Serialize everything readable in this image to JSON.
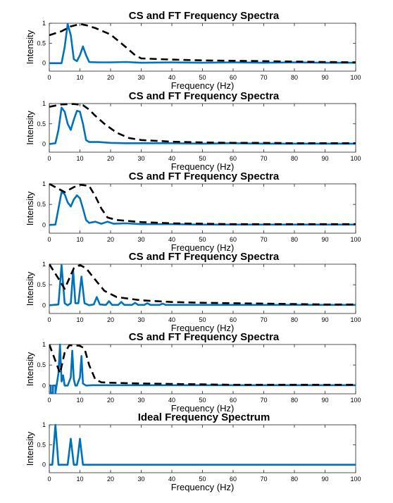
{
  "colors": {
    "cs": "#0072bd",
    "ft": "#000000"
  },
  "chart_data": [
    {
      "type": "line",
      "title": "CS and FT Frequency Spectra",
      "xlabel": "Frequency (Hz)",
      "ylabel": "Intensity",
      "xlim": [
        0,
        100
      ],
      "ylim": [
        -0.2,
        1
      ],
      "xticks": [
        0,
        10,
        20,
        30,
        40,
        50,
        60,
        70,
        80,
        90,
        100
      ],
      "yticks": [
        0,
        0.5,
        1
      ],
      "series": [
        {
          "style": "solid",
          "color": "#0072bd",
          "x": [
            0,
            4,
            5,
            6,
            7,
            8,
            9,
            10,
            11,
            12,
            13,
            16,
            20,
            25,
            30,
            40,
            50,
            60,
            70,
            80,
            90,
            100
          ],
          "y": [
            0,
            0,
            0.4,
            0.98,
            0.7,
            0.1,
            0.05,
            0.2,
            0.42,
            0.2,
            0.03,
            0.02,
            0.02,
            0.03,
            0.01,
            0.02,
            0.01,
            0.02,
            0.01,
            0.02,
            0.01,
            0.01
          ]
        },
        {
          "style": "dashed",
          "color": "#000000",
          "x": [
            0,
            4,
            7,
            10,
            12,
            15,
            20,
            25,
            28,
            30,
            40,
            50,
            60,
            70,
            80,
            90,
            100
          ],
          "y": [
            0.7,
            0.8,
            0.92,
            0.98,
            0.95,
            0.88,
            0.72,
            0.4,
            0.2,
            0.12,
            0.09,
            0.07,
            0.06,
            0.05,
            0.04,
            0.03,
            0.02
          ]
        }
      ]
    },
    {
      "type": "line",
      "title": "CS and FT Frequency Spectra",
      "xlabel": "Frequency (Hz)",
      "ylabel": "Intensity",
      "xlim": [
        0,
        100
      ],
      "ylim": [
        -0.2,
        1
      ],
      "xticks": [
        0,
        10,
        20,
        30,
        40,
        50,
        60,
        70,
        80,
        90,
        100
      ],
      "yticks": [
        0,
        0.5,
        1
      ],
      "series": [
        {
          "style": "solid",
          "color": "#0072bd",
          "x": [
            0,
            2,
            3,
            4,
            5,
            6,
            7,
            8,
            9,
            10,
            11,
            12,
            13,
            16,
            20,
            25,
            30,
            40,
            50,
            60,
            70,
            80,
            90,
            100
          ],
          "y": [
            0,
            0.02,
            0.35,
            0.9,
            0.8,
            0.5,
            0.35,
            0.6,
            0.82,
            0.8,
            0.5,
            0.1,
            0.05,
            0.05,
            0.03,
            0.02,
            0.02,
            0.02,
            0.01,
            0.02,
            0.01,
            0.01,
            0.01,
            0.01
          ]
        },
        {
          "style": "dashed",
          "color": "#000000",
          "x": [
            0,
            4,
            8,
            11,
            13,
            15,
            18,
            22,
            26,
            30,
            40,
            50,
            60,
            70,
            80,
            90,
            100
          ],
          "y": [
            0.92,
            0.98,
            0.99,
            0.96,
            0.85,
            0.7,
            0.5,
            0.28,
            0.15,
            0.1,
            0.06,
            0.04,
            0.03,
            0.03,
            0.02,
            0.02,
            0.02
          ]
        }
      ]
    },
    {
      "type": "line",
      "title": "CS and FT Frequency Spectra",
      "xlabel": "Frequency (Hz)",
      "ylabel": "Intensity",
      "xlim": [
        0,
        100
      ],
      "ylim": [
        -0.2,
        1
      ],
      "xticks": [
        0,
        10,
        20,
        30,
        40,
        50,
        60,
        70,
        80,
        90,
        100
      ],
      "yticks": [
        0,
        0.5,
        1
      ],
      "series": [
        {
          "style": "solid",
          "color": "#0072bd",
          "x": [
            0,
            2,
            3,
            4,
            5,
            6,
            7,
            8,
            9,
            10,
            11,
            12,
            13,
            15,
            17,
            19,
            21,
            25,
            30,
            40,
            50,
            60,
            70,
            80,
            90,
            100
          ],
          "y": [
            0,
            0.01,
            0.4,
            0.8,
            0.75,
            0.55,
            0.45,
            0.62,
            0.72,
            0.65,
            0.4,
            0.12,
            0.05,
            0.08,
            0.03,
            0.08,
            0.03,
            0.04,
            0.02,
            0.02,
            0.01,
            0.01,
            0.01,
            0.01,
            0.01,
            0.01
          ]
        },
        {
          "style": "dashed",
          "color": "#000000",
          "x": [
            0,
            3,
            5,
            8,
            10,
            13,
            15,
            17,
            19,
            22,
            30,
            40,
            50,
            60,
            70,
            80,
            90,
            100
          ],
          "y": [
            1.0,
            0.88,
            0.8,
            0.92,
            0.98,
            0.95,
            0.7,
            0.4,
            0.18,
            0.12,
            0.07,
            0.04,
            0.03,
            0.02,
            0.02,
            0.02,
            0.02,
            0.02
          ]
        }
      ]
    },
    {
      "type": "line",
      "title": "CS and FT Frequency Spectra",
      "xlabel": "Frequency (Hz)",
      "ylabel": "Intensity",
      "xlim": [
        0,
        100
      ],
      "ylim": [
        -0.2,
        1
      ],
      "xticks": [
        0,
        10,
        20,
        30,
        40,
        50,
        60,
        70,
        80,
        90,
        100
      ],
      "yticks": [
        0,
        0.5,
        1
      ],
      "series": [
        {
          "style": "solid",
          "color": "#0072bd",
          "x": [
            0,
            3,
            4,
            5,
            6,
            7,
            7.8,
            8.5,
            9.5,
            10.5,
            11.5,
            13,
            14.5,
            15.5,
            16.5,
            18.5,
            19.5,
            20.5,
            22.5,
            23.5,
            24.5,
            27,
            28,
            29,
            31,
            32,
            33,
            36,
            37,
            38,
            40,
            50,
            60,
            70,
            80,
            90,
            100
          ],
          "y": [
            0,
            0.02,
            0.98,
            0.05,
            0,
            0.05,
            0.85,
            0.05,
            0.05,
            0.7,
            0.05,
            0,
            0.02,
            0.2,
            0.02,
            0.01,
            0.1,
            0.01,
            0.01,
            0.08,
            0.01,
            0.01,
            0.06,
            0.01,
            0.01,
            0.05,
            0.01,
            0.01,
            0.04,
            0.01,
            0.01,
            0.01,
            0.01,
            0.01,
            0.01,
            0.01,
            0.01
          ]
        },
        {
          "style": "dashed",
          "color": "#000000",
          "x": [
            0,
            3,
            5,
            8,
            10,
            12,
            15,
            18,
            22,
            30,
            40,
            50,
            60,
            70,
            80,
            90,
            100
          ],
          "y": [
            1.0,
            0.65,
            0.4,
            0.9,
            0.98,
            0.9,
            0.62,
            0.35,
            0.2,
            0.12,
            0.08,
            0.06,
            0.05,
            0.04,
            0.03,
            0.02,
            0.02
          ]
        }
      ]
    },
    {
      "type": "line",
      "title": "CS and FT Frequency Spectra",
      "xlabel": "Frequency (Hz)",
      "ylabel": "Intensity",
      "xlim": [
        0,
        100
      ],
      "ylim": [
        -0.2,
        1
      ],
      "xticks": [
        0,
        10,
        20,
        30,
        40,
        50,
        60,
        70,
        80,
        90,
        100
      ],
      "yticks": [
        0,
        0.5,
        1
      ],
      "series": [
        {
          "style": "solid",
          "color": "#0072bd",
          "x": [
            0,
            0.5,
            0.5,
            1.2,
            1.2,
            2,
            2,
            3,
            3.5,
            4,
            4.5,
            5,
            6,
            7,
            7.5,
            8,
            8.5,
            9,
            10,
            10.5,
            11,
            12,
            14,
            20,
            30,
            40,
            50,
            60,
            70,
            80,
            90,
            100
          ],
          "y": [
            0,
            0,
            -0.18,
            -0.18,
            0,
            0,
            -0.18,
            0.3,
            1.0,
            0.1,
            0.25,
            0.0,
            0.0,
            0.2,
            0.85,
            0.15,
            0.0,
            0.0,
            0.2,
            0.72,
            0.05,
            0.0,
            0.01,
            0.01,
            0.01,
            0.01,
            0.01,
            0.01,
            0.01,
            0.01,
            0.01,
            0.01
          ]
        },
        {
          "style": "dashed",
          "color": "#000000",
          "x": [
            0,
            2,
            3.5,
            5,
            6.5,
            8,
            10,
            11.5,
            13,
            15,
            17,
            20,
            30,
            40,
            50,
            60,
            70,
            80,
            90,
            100
          ],
          "y": [
            1.0,
            0.6,
            0.3,
            0.8,
            0.98,
            0.98,
            0.97,
            0.9,
            0.5,
            0.15,
            0.08,
            0.07,
            0.05,
            0.04,
            0.03,
            0.02,
            0.02,
            0.02,
            0.02,
            0.02
          ]
        }
      ]
    },
    {
      "type": "line",
      "title": "Ideal Frequency Spectrum",
      "xlabel": "Frequency (Hz)",
      "ylabel": "Intensity",
      "xlim": [
        0,
        100
      ],
      "ylim": [
        -0.2,
        1
      ],
      "xticks": [
        0,
        10,
        20,
        30,
        40,
        50,
        60,
        70,
        80,
        90,
        100
      ],
      "yticks": [
        0,
        0.5,
        1
      ],
      "series": [
        {
          "style": "solid",
          "color": "#0072bd",
          "x": [
            0,
            1,
            2,
            3,
            4,
            5,
            6,
            7,
            8,
            9,
            10,
            11,
            12,
            100
          ],
          "y": [
            0,
            0,
            1.0,
            0,
            0,
            0,
            0,
            0.65,
            0,
            0,
            0.65,
            0,
            0,
            0
          ]
        }
      ]
    }
  ]
}
